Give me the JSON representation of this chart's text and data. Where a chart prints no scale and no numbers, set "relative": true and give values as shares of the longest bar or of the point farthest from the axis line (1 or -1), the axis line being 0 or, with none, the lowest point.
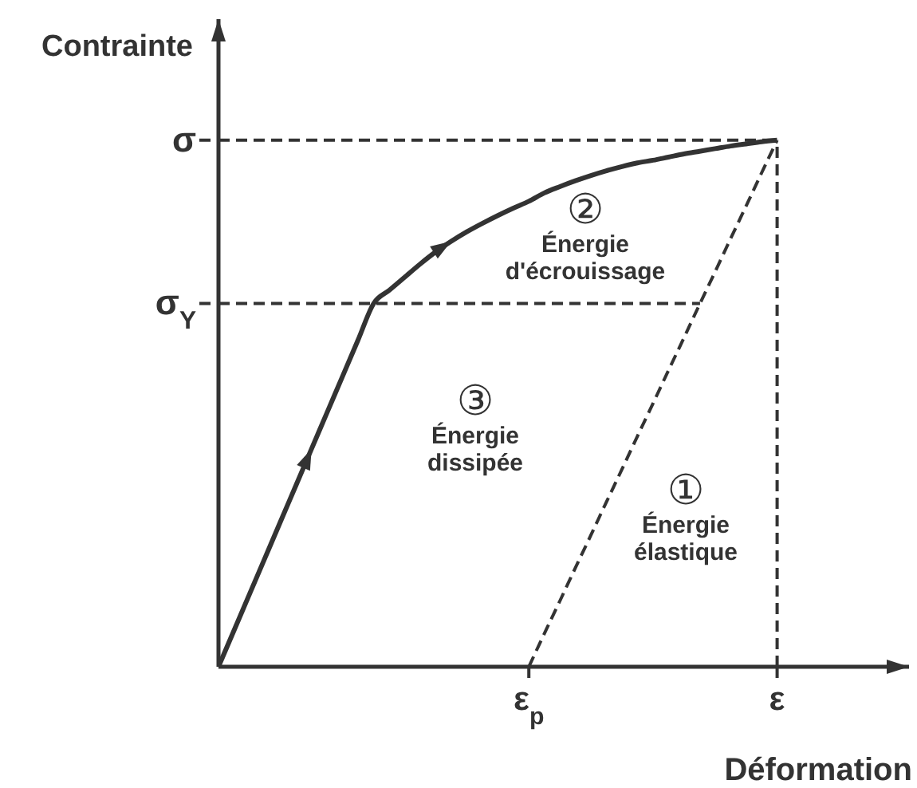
{
  "chart_data": {
    "type": "line",
    "relative": true,
    "xlabel": "Déformation",
    "ylabel": "Contrainte",
    "categories": [
      null,
      null,
      null,
      null,
      null,
      null,
      null,
      null,
      null,
      null,
      null,
      null,
      null,
      null,
      null,
      null,
      null,
      null,
      null,
      null,
      "ε$_{p}$",
      null,
      null,
      null,
      null,
      null,
      null,
      null,
      null,
      null,
      null,
      null,
      null,
      null,
      null,
      null,
      "ε",
      null,
      null,
      null,
      null,
      null,
      null,
      null,
      null
    ],
    "series": [
      {
        "color": "#333333",
        "line_style": "solid",
        "values": [
          0,
          0.069,
          0.138,
          0.207,
          0.276,
          0.345,
          0.414,
          0.483,
          0.552,
          0.621,
          0.69,
          0.715,
          0.74,
          0.765,
          0.788,
          0.808,
          0.826,
          0.842,
          0.857,
          0.871,
          0.884,
          0.9,
          0.912,
          0.923,
          0.933,
          0.942,
          0.95,
          0.957,
          0.962,
          0.968,
          0.974,
          0.979,
          0.984,
          0.989,
          0.993,
          0.997,
          1,
          null,
          null,
          null,
          null,
          null,
          null,
          null,
          null
        ]
      },
      {
        "color": "#333333",
        "line_style": "dashed",
        "values": [
          null,
          null,
          null,
          null,
          null,
          null,
          null,
          null,
          null,
          null,
          null,
          null,
          null,
          null,
          null,
          null,
          null,
          null,
          null,
          null,
          0,
          0.063,
          0.125,
          0.188,
          0.25,
          0.313,
          0.375,
          0.438,
          0.5,
          0.563,
          0.625,
          0.688,
          0.75,
          0.813,
          0.875,
          0.938,
          1,
          null,
          null,
          null,
          null,
          null,
          null,
          null,
          null
        ]
      }
    ],
    "ref_lines": [
      {
        "axis": "y",
        "value": 1,
        "label": "σ",
        "color": "#333333",
        "line_style": "dashed"
      },
      {
        "axis": "y",
        "value": 0.69,
        "label": "σ$_{Y}$",
        "color": "#333333",
        "line_style": "dashed"
      },
      {
        "axis": "x",
        "value": "ε",
        "color": "#333333",
        "line_style": "dashed"
      }
    ],
    "annotations": [
      "② Énergie d'écrouissage",
      "③ Énergie dissipée",
      "① Énergie élastique"
    ]
  }
}
